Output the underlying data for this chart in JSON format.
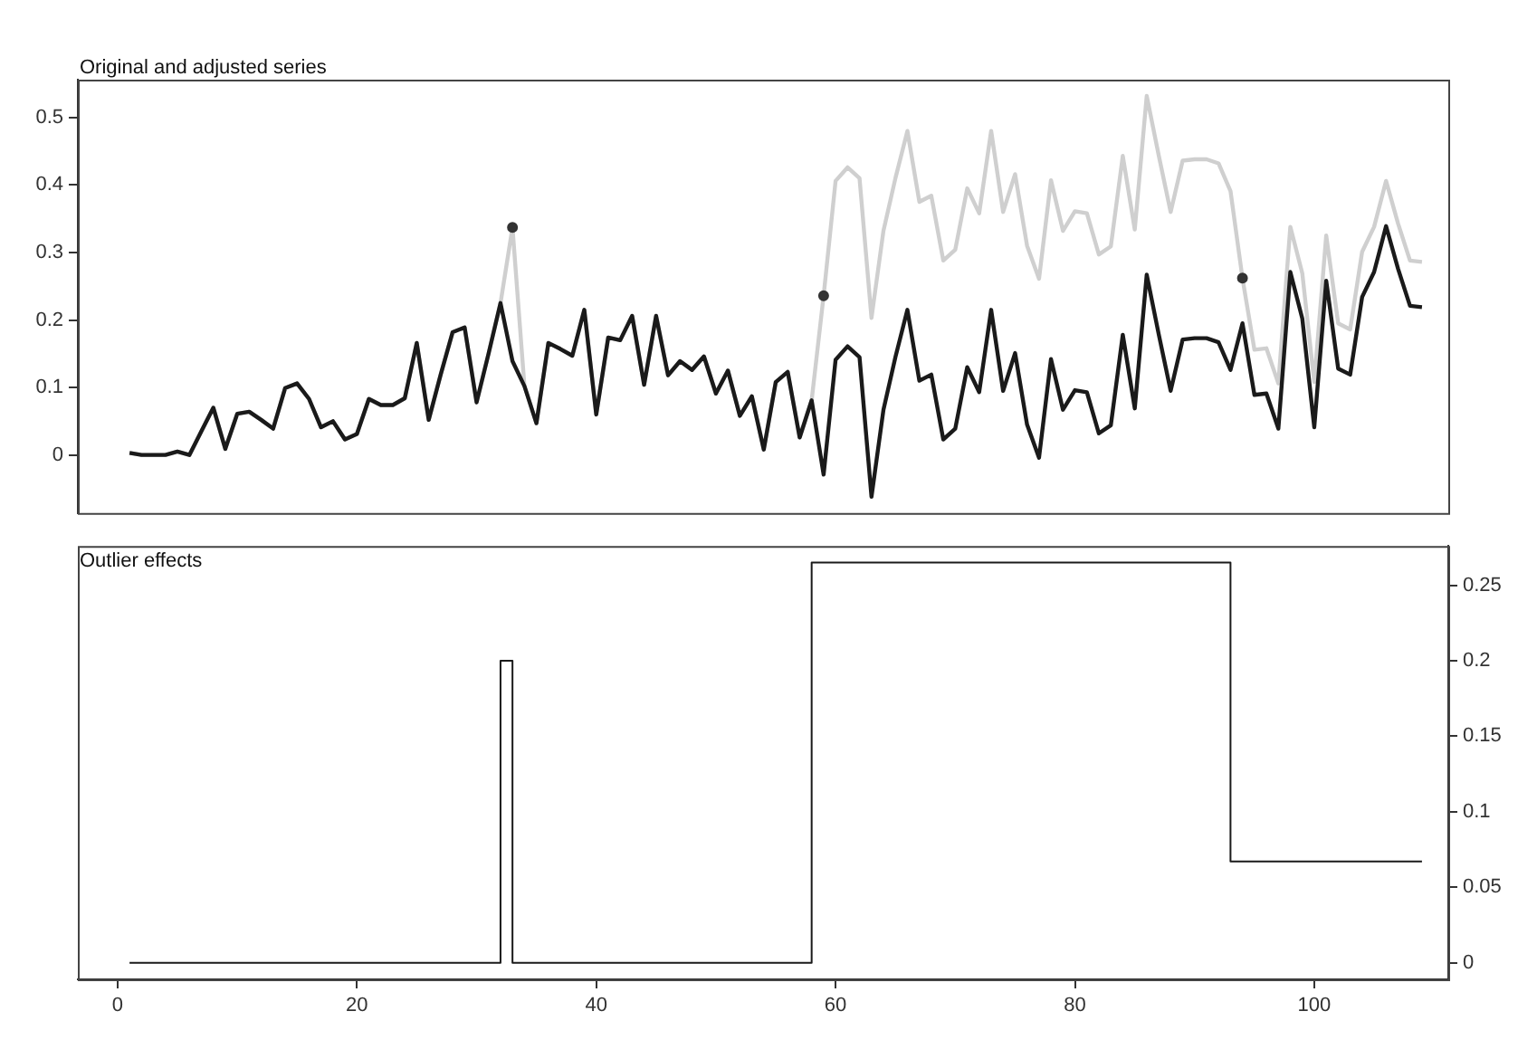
{
  "chart_data": [
    {
      "type": "line",
      "title": "Original and adjusted series",
      "xlim": [
        -3.32,
        111.2
      ],
      "ylim": [
        -0.086,
        0.556
      ],
      "yticks": [
        0,
        0.1,
        0.2,
        0.3,
        0.4,
        0.5
      ],
      "tick_labels": "y",
      "x": [
        1,
        2,
        3,
        4,
        5,
        6,
        7,
        8,
        9,
        10,
        11,
        12,
        13,
        14,
        15,
        16,
        17,
        18,
        19,
        20,
        21,
        22,
        23,
        24,
        25,
        26,
        27,
        28,
        29,
        30,
        31,
        32,
        33,
        34,
        35,
        36,
        37,
        38,
        39,
        40,
        41,
        42,
        43,
        44,
        45,
        46,
        47,
        48,
        49,
        50,
        51,
        52,
        53,
        54,
        55,
        56,
        57,
        58,
        59,
        60,
        61,
        62,
        63,
        64,
        65,
        66,
        67,
        68,
        69,
        70,
        71,
        72,
        73,
        74,
        75,
        76,
        77,
        78,
        79,
        80,
        81,
        82,
        83,
        84,
        85,
        86,
        87,
        88,
        89,
        90,
        91,
        92,
        93,
        94,
        95,
        96,
        97,
        98,
        99,
        100,
        101,
        102,
        103,
        104,
        105,
        106,
        107,
        108,
        109
      ],
      "series": [
        {
          "color": "#cfcfcf",
          "values": [
            0.003,
            0,
            0,
            0,
            0.005,
            0,
            0.035,
            0.07,
            0.009,
            0.061,
            0.064,
            0.052,
            0.039,
            0.099,
            0.106,
            0.083,
            0.041,
            0.05,
            0.023,
            0.031,
            0.083,
            0.074,
            0.074,
            0.084,
            0.166,
            0.052,
            0.119,
            0.182,
            0.189,
            0.078,
            0.15,
            0.225,
            0.337,
            0.102,
            0.047,
            0.166,
            0.157,
            0.147,
            0.215,
            0.06,
            0.174,
            0.17,
            0.206,
            0.104,
            0.206,
            0.118,
            0.139,
            0.126,
            0.146,
            0.091,
            0.125,
            0.058,
            0.087,
            0.008,
            0.108,
            0.123,
            0.026,
            0.081,
            0.236,
            0.406,
            0.426,
            0.41,
            0.203,
            0.332,
            0.41,
            0.48,
            0.375,
            0.384,
            0.288,
            0.304,
            0.395,
            0.358,
            0.48,
            0.36,
            0.416,
            0.31,
            0.261,
            0.407,
            0.332,
            0.361,
            0.358,
            0.297,
            0.309,
            0.443,
            0.334,
            0.532,
            0.444,
            0.36,
            0.436,
            0.438,
            0.438,
            0.432,
            0.391,
            0.262,
            0.156,
            0.158,
            0.106,
            0.338,
            0.269,
            0.108,
            0.325,
            0.195,
            0.186,
            0.301,
            0.338,
            0.406,
            0.343,
            0.288,
            0.286
          ]
        },
        {
          "color": "#1a1a1a",
          "values": [
            0.003,
            0,
            0,
            0,
            0.005,
            0,
            0.035,
            0.07,
            0.009,
            0.061,
            0.064,
            0.052,
            0.039,
            0.099,
            0.106,
            0.083,
            0.041,
            0.05,
            0.023,
            0.031,
            0.083,
            0.074,
            0.074,
            0.084,
            0.166,
            0.052,
            0.119,
            0.182,
            0.189,
            0.078,
            0.15,
            0.225,
            0.139,
            0.102,
            0.047,
            0.166,
            0.157,
            0.147,
            0.215,
            0.06,
            0.174,
            0.17,
            0.206,
            0.104,
            0.206,
            0.118,
            0.139,
            0.126,
            0.146,
            0.091,
            0.125,
            0.058,
            0.087,
            0.008,
            0.108,
            0.123,
            0.026,
            0.081,
            -0.029,
            0.141,
            0.161,
            0.145,
            -0.062,
            0.067,
            0.145,
            0.215,
            0.11,
            0.119,
            0.023,
            0.039,
            0.13,
            0.093,
            0.215,
            0.095,
            0.151,
            0.045,
            -0.004,
            0.142,
            0.067,
            0.096,
            0.093,
            0.032,
            0.044,
            0.178,
            0.069,
            0.267,
            0.179,
            0.095,
            0.171,
            0.173,
            0.173,
            0.167,
            0.126,
            0.195,
            0.089,
            0.091,
            0.039,
            0.271,
            0.202,
            0.041,
            0.258,
            0.128,
            0.119,
            0.234,
            0.271,
            0.339,
            0.276,
            0.221,
            0.219
          ]
        },
        {
          "type": "scatter",
          "color": "#333333",
          "x": [
            33,
            59,
            94
          ],
          "values": [
            0.337,
            0.236,
            0.262
          ]
        }
      ]
    },
    {
      "type": "step",
      "title": "Outlier effects",
      "xlim": [
        -3.32,
        111.2
      ],
      "xticks": [
        0,
        20,
        40,
        60,
        80,
        100
      ],
      "y2lim": [
        -0.011,
        0.276
      ],
      "y2ticks": [
        0,
        0.05,
        0.1,
        0.15,
        0.2,
        0.25
      ],
      "x": [
        1,
        2,
        3,
        4,
        5,
        6,
        7,
        8,
        9,
        10,
        11,
        12,
        13,
        14,
        15,
        16,
        17,
        18,
        19,
        20,
        21,
        22,
        23,
        24,
        25,
        26,
        27,
        28,
        29,
        30,
        31,
        32,
        33,
        34,
        35,
        36,
        37,
        38,
        39,
        40,
        41,
        42,
        43,
        44,
        45,
        46,
        47,
        48,
        49,
        50,
        51,
        52,
        53,
        54,
        55,
        56,
        57,
        58,
        59,
        60,
        61,
        62,
        63,
        64,
        65,
        66,
        67,
        68,
        69,
        70,
        71,
        72,
        73,
        74,
        75,
        76,
        77,
        78,
        79,
        80,
        81,
        82,
        83,
        84,
        85,
        86,
        87,
        88,
        89,
        90,
        91,
        92,
        93,
        94,
        95,
        96,
        97,
        98,
        99,
        100,
        101,
        102,
        103,
        104,
        105,
        106,
        107,
        108,
        109
      ],
      "series": [
        {
          "color": "#1a1a1a",
          "axis": "y2",
          "values": [
            0,
            0,
            0,
            0,
            0,
            0,
            0,
            0,
            0,
            0,
            0,
            0,
            0,
            0,
            0,
            0,
            0,
            0,
            0,
            0,
            0,
            0,
            0,
            0,
            0,
            0,
            0,
            0,
            0,
            0,
            0,
            0,
            0.2,
            0,
            0,
            0,
            0,
            0,
            0,
            0,
            0,
            0,
            0,
            0,
            0,
            0,
            0,
            0,
            0,
            0,
            0,
            0,
            0,
            0,
            0,
            0,
            0,
            0,
            0.265,
            0.265,
            0.265,
            0.265,
            0.265,
            0.265,
            0.265,
            0.265,
            0.265,
            0.265,
            0.265,
            0.265,
            0.265,
            0.265,
            0.265,
            0.265,
            0.265,
            0.265,
            0.265,
            0.265,
            0.265,
            0.265,
            0.265,
            0.265,
            0.265,
            0.265,
            0.265,
            0.265,
            0.265,
            0.265,
            0.265,
            0.265,
            0.265,
            0.265,
            0.265,
            0.067,
            0.067,
            0.067,
            0.067,
            0.067,
            0.067,
            0.067,
            0.067,
            0.067,
            0.067,
            0.067,
            0.067,
            0.067,
            0.067,
            0.067,
            0.067
          ]
        }
      ]
    }
  ]
}
